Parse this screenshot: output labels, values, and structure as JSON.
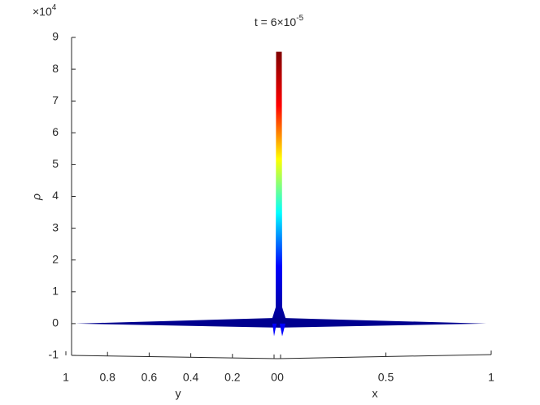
{
  "chart_data": {
    "type": "surface",
    "title": "t = 6×10",
    "title_exponent": "-5",
    "z_multiplier": "×10",
    "z_multiplier_exponent": "4",
    "zlabel": "ρ",
    "xlabel": "x",
    "ylabel": "y",
    "zlim": [
      -1,
      9
    ],
    "zticks": [
      -1,
      0,
      1,
      2,
      3,
      4,
      5,
      6,
      7,
      8,
      9
    ],
    "xlim": [
      0,
      1
    ],
    "xticks": [
      0,
      0.5,
      1
    ],
    "ylim": [
      0,
      1
    ],
    "yticks": [
      1,
      0.8,
      0.6,
      0.4,
      0.2,
      0
    ],
    "peak": 8.55,
    "base": 0,
    "trough": -0.4,
    "colormap": [
      "#00008f",
      "#0000ff",
      "#00ffff",
      "#ffff00",
      "#ff0000",
      "#800000"
    ]
  }
}
